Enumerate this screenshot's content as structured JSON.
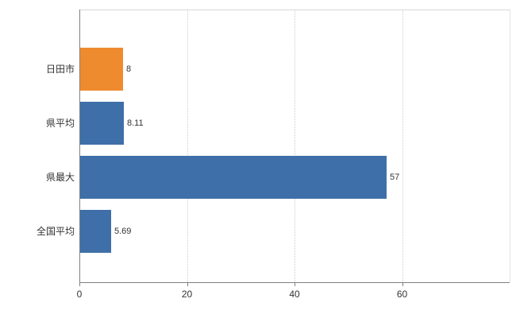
{
  "chart_data": {
    "type": "bar",
    "orientation": "horizontal",
    "title": "",
    "xlabel": "",
    "ylabel": "",
    "categories": [
      "日田市",
      "県平均",
      "県最大",
      "全国平均"
    ],
    "values": [
      8,
      8.11,
      57,
      5.69
    ],
    "value_labels": [
      "8",
      "8.11",
      "57",
      "5.69"
    ],
    "bar_colors": [
      "#ef8b2f",
      "#3f6fa8",
      "#3f6fa8",
      "#3f6fa8"
    ],
    "xlim": [
      0,
      80
    ],
    "x_ticks": [
      0,
      20,
      40,
      60
    ],
    "gridlines": [
      20,
      40,
      60
    ],
    "grid_style": "dotted",
    "legend": "none"
  },
  "colors": {
    "bar_blue": "#3f6fa8",
    "bar_orange": "#ef8b2f",
    "axis": "#808080",
    "grid": "#cccccc",
    "plot_border": "#d6d6d6",
    "text": "#333333",
    "background": "#ffffff"
  }
}
